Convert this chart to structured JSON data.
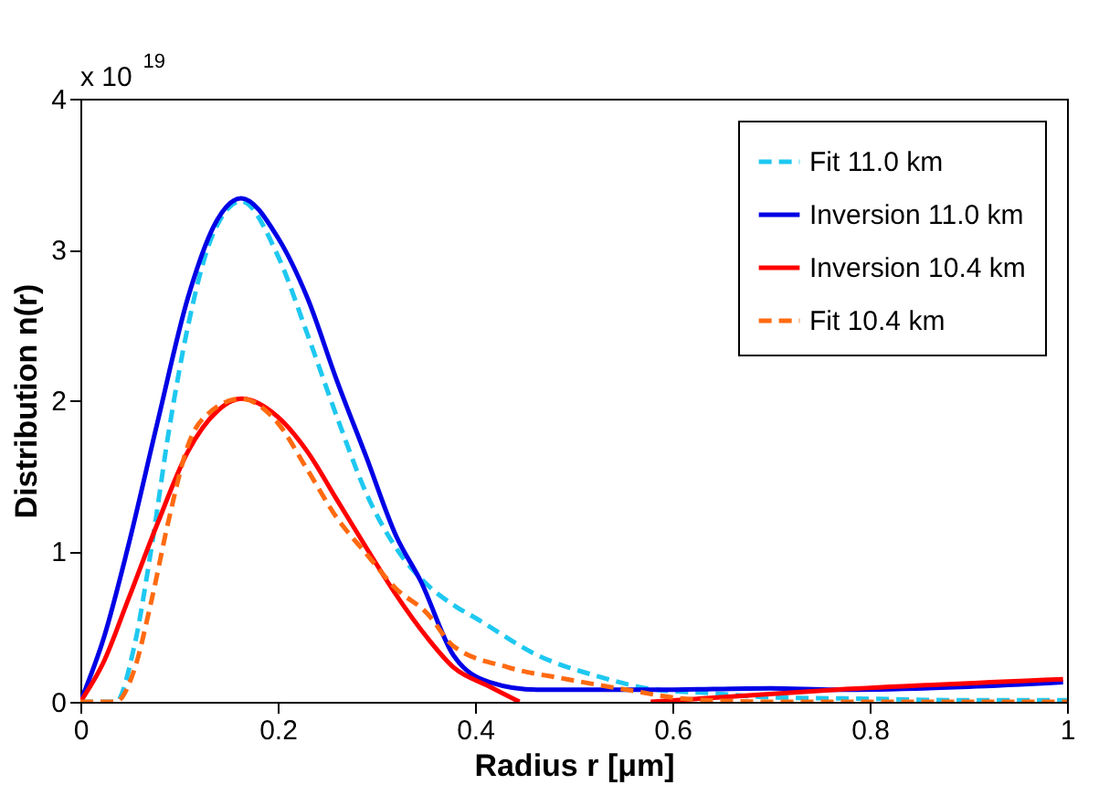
{
  "chart_data": {
    "type": "line",
    "xlabel": "Radius r [μm]",
    "ylabel": "Distribution n(r)",
    "annotations": [
      "x 10$^{19}$"
    ],
    "xlim": [
      0,
      1
    ],
    "xticks": [
      0,
      0.2,
      0.4,
      0.6,
      0.8,
      1
    ],
    "ylim": [
      0,
      4
    ],
    "yticks": [
      0,
      1,
      2,
      3,
      4
    ],
    "grid": false,
    "legend": "top right",
    "tick_labels": "xy",
    "series": [
      {
        "name": "Fit 11.0 km",
        "color": "#1ec8f0",
        "line_style": "dashed",
        "x": [
          0,
          0.036,
          0.054,
          0.072,
          0.09,
          0.109,
          0.133,
          0.163,
          0.2,
          0.23,
          0.26,
          0.29,
          0.32,
          0.351,
          0.381,
          0.402,
          0.463,
          0.524,
          0.584,
          0.633,
          0.7,
          0.8,
          0.9,
          1
        ],
        "values": [
          0,
          0,
          0.35,
          1.02,
          1.81,
          2.49,
          3.08,
          3.32,
          2.96,
          2.44,
          1.89,
          1.38,
          1.02,
          0.78,
          0.63,
          0.55,
          0.31,
          0.17,
          0.08,
          0.06,
          0.03,
          0.02,
          0.01,
          0.01
        ]
      },
      {
        "name": "Inversion 11.0 km",
        "color": "#0000e6",
        "line_style": "solid",
        "x": [
          0,
          0.024,
          0.048,
          0.078,
          0.109,
          0.139,
          0.163,
          0.2,
          0.23,
          0.26,
          0.29,
          0.32,
          0.345,
          0.378,
          0.415,
          0.463,
          0.584,
          0.7,
          0.765,
          0.9,
          0.996
        ],
        "values": [
          0,
          0.43,
          1.02,
          1.85,
          2.68,
          3.2,
          3.34,
          3.08,
          2.68,
          2.13,
          1.62,
          1.1,
          0.8,
          0.31,
          0.13,
          0.08,
          0.08,
          0.09,
          0.08,
          0.1,
          0.13
        ]
      },
      {
        "name": "Inversion 10.4 km",
        "color": "#ff0000",
        "line_style": "solid",
        "x": [
          0,
          0.024,
          0.048,
          0.078,
          0.109,
          0.139,
          0.163,
          0.2,
          0.23,
          0.26,
          0.29,
          0.32,
          0.351,
          0.378,
          0.415,
          0.445,
          0.5,
          0.578,
          0.766,
          0.996
        ],
        "values": [
          0,
          0.27,
          0.67,
          1.18,
          1.66,
          1.93,
          2.01,
          1.89,
          1.66,
          1.34,
          1.02,
          0.71,
          0.43,
          0.23,
          0.1,
          0,
          null,
          0,
          0.08,
          0.15
        ]
      },
      {
        "name": "Fit 10.4 km",
        "color": "#ff6a10",
        "line_style": "dashed",
        "x": [
          0,
          0.036,
          0.054,
          0.072,
          0.09,
          0.109,
          0.133,
          0.163,
          0.2,
          0.23,
          0.26,
          0.29,
          0.32,
          0.351,
          0.378,
          0.433,
          0.493,
          0.554,
          0.614,
          0.7,
          0.85,
          1
        ],
        "values": [
          0,
          0,
          0.2,
          0.67,
          1.22,
          1.7,
          1.93,
          2.01,
          1.85,
          1.54,
          1.22,
          0.98,
          0.75,
          0.59,
          0.37,
          0.23,
          0.15,
          0.08,
          0.02,
          0,
          0,
          0
        ]
      }
    ]
  }
}
